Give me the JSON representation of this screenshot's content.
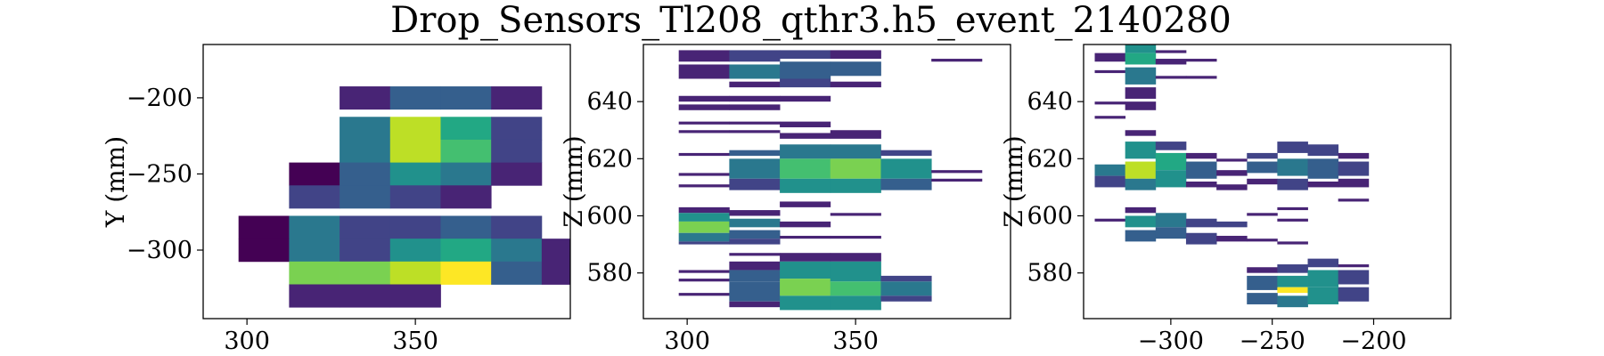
{
  "figure": {
    "title": "Drop_Sensors_Tl208_qthr3.h5_event_2140280"
  },
  "colormap": [
    "#440154",
    "#482475",
    "#414487",
    "#355f8d",
    "#2a788e",
    "#21918c",
    "#22a884",
    "#44bf70",
    "#7ad151",
    "#bddf26",
    "#fde725"
  ],
  "chart_data": [
    {
      "type": "heatmap",
      "name": "xy",
      "xlabel": "",
      "ylabel": "Y (mm)",
      "xlim": [
        287,
        396
      ],
      "ylim": [
        -345,
        -165
      ],
      "xticks": [
        300,
        350
      ],
      "yticks": [
        -200,
        -250,
        -300
      ],
      "cells": [
        [
          335,
          -200,
          0.08
        ],
        [
          350,
          -200,
          0.3
        ],
        [
          365,
          -200,
          0.3
        ],
        [
          380,
          -200,
          0.05
        ],
        [
          335,
          -220,
          0.35
        ],
        [
          350,
          -220,
          0.85
        ],
        [
          365,
          -220,
          0.6
        ],
        [
          380,
          -220,
          0.2
        ],
        [
          335,
          -235,
          0.35
        ],
        [
          350,
          -235,
          0.92
        ],
        [
          365,
          -235,
          0.72
        ],
        [
          380,
          -235,
          0.2
        ],
        [
          320,
          -250,
          0.02
        ],
        [
          335,
          -250,
          0.25
        ],
        [
          350,
          -250,
          0.45
        ],
        [
          365,
          -250,
          0.35
        ],
        [
          380,
          -250,
          0.05
        ],
        [
          320,
          -265,
          0.18
        ],
        [
          335,
          -265,
          0.25
        ],
        [
          350,
          -265,
          0.15
        ],
        [
          365,
          -265,
          0.05
        ],
        [
          305,
          -285,
          0.02
        ],
        [
          320,
          -285,
          0.38
        ],
        [
          335,
          -285,
          0.15
        ],
        [
          350,
          -285,
          0.15
        ],
        [
          365,
          -285,
          0.25
        ],
        [
          380,
          -285,
          0.15
        ],
        [
          305,
          -300,
          0.02
        ],
        [
          320,
          -300,
          0.38
        ],
        [
          335,
          -300,
          0.22
        ],
        [
          350,
          -300,
          0.45
        ],
        [
          365,
          -300,
          0.55
        ],
        [
          380,
          -300,
          0.35
        ],
        [
          395,
          -300,
          0.05
        ],
        [
          320,
          -315,
          0.78
        ],
        [
          335,
          -315,
          0.75
        ],
        [
          350,
          -315,
          0.85
        ],
        [
          365,
          -315,
          1.0
        ],
        [
          380,
          -315,
          0.3
        ],
        [
          395,
          -315,
          0.05
        ],
        [
          320,
          -330,
          0.05
        ],
        [
          335,
          -330,
          0.12
        ],
        [
          350,
          -330,
          0.08
        ]
      ],
      "cell_width": 15,
      "cell_height": 15
    },
    {
      "type": "heatmap",
      "name": "xz",
      "xlabel": "",
      "ylabel": "Z (mm)",
      "xlim": [
        287,
        396
      ],
      "ylim": [
        564,
        660
      ],
      "xticks": [
        300,
        350
      ],
      "yticks": [
        640,
        620,
        600,
        580
      ],
      "columns": [
        {
          "x": 305,
          "bands": [
            [
              654,
              658,
              0.05
            ],
            [
              648,
              653,
              0.05
            ],
            [
              640,
              642,
              0.05
            ],
            [
              637,
              639,
              0.05
            ],
            [
              632,
              633,
              0.05
            ],
            [
              629,
              630,
              0.05
            ],
            [
              621,
              622,
              0.05
            ],
            [
              614,
              615,
              0.05
            ],
            [
              610,
              611,
              0.05
            ],
            [
              601,
              603,
              0.1
            ],
            [
              598,
              601,
              0.45
            ],
            [
              594,
              598,
              0.75
            ],
            [
              591,
              594,
              0.4
            ],
            [
              590,
              591,
              0.15
            ],
            [
              580,
              581,
              0.05
            ],
            [
              577,
              578,
              0.05
            ],
            [
              572,
              573,
              0.05
            ]
          ]
        },
        {
          "x": 320,
          "bands": [
            [
              654,
              658,
              0.15
            ],
            [
              648,
              653,
              0.35
            ],
            [
              645,
              647,
              0.1
            ],
            [
              640,
              642,
              0.1
            ],
            [
              637,
              639,
              0.05
            ],
            [
              632,
              633,
              0.05
            ],
            [
              629,
              630,
              0.05
            ],
            [
              621,
              623,
              0.25
            ],
            [
              613,
              620,
              0.35
            ],
            [
              609,
              613,
              0.2
            ],
            [
              600,
              602,
              0.05
            ],
            [
              596,
              599,
              0.35
            ],
            [
              592,
              595,
              0.25
            ],
            [
              590,
              592,
              0.15
            ],
            [
              586,
              587,
              0.05
            ],
            [
              581,
              584,
              0.1
            ],
            [
              577,
              581,
              0.3
            ],
            [
              570,
              577,
              0.3
            ],
            [
              568,
              570,
              0.1
            ]
          ]
        },
        {
          "x": 335,
          "bands": [
            [
              655,
              658,
              0.15
            ],
            [
              648,
              654,
              0.3
            ],
            [
              645,
              648,
              0.15
            ],
            [
              640,
              642,
              0.05
            ],
            [
              631,
              633,
              0.05
            ],
            [
              627,
              629,
              0.1
            ],
            [
              620,
              625,
              0.4
            ],
            [
              613,
              620,
              0.7
            ],
            [
              608,
              613,
              0.45
            ],
            [
              603,
              605,
              0.05
            ],
            [
              596,
              598,
              0.05
            ],
            [
              592,
              593,
              0.05
            ],
            [
              584,
              587,
              0.1
            ],
            [
              578,
              584,
              0.45
            ],
            [
              572,
              578,
              0.75
            ],
            [
              567,
              572,
              0.5
            ]
          ]
        },
        {
          "x": 350,
          "bands": [
            [
              655,
              658,
              0.1
            ],
            [
              649,
              654,
              0.25
            ],
            [
              645,
              647,
              0.1
            ],
            [
              627,
              630,
              0.1
            ],
            [
              620,
              625,
              0.35
            ],
            [
              613,
              620,
              0.78
            ],
            [
              608,
              613,
              0.45
            ],
            [
              600,
              601,
              0.05
            ],
            [
              592,
              593,
              0.05
            ],
            [
              584,
              587,
              0.1
            ],
            [
              577,
              584,
              0.5
            ],
            [
              572,
              577,
              0.7
            ],
            [
              567,
              572,
              0.5
            ]
          ]
        },
        {
          "x": 365,
          "bands": [
            [
              621,
              623,
              0.2
            ],
            [
              613,
              620,
              0.45
            ],
            [
              609,
              613,
              0.3
            ],
            [
              577,
              579,
              0.2
            ],
            [
              572,
              577,
              0.4
            ],
            [
              570,
              572,
              0.2
            ]
          ]
        },
        {
          "x": 380,
          "bands": [
            [
              654,
              655,
              0.05
            ],
            [
              615,
              616,
              0.05
            ],
            [
              612,
              613,
              0.05
            ]
          ]
        }
      ],
      "cell_width": 15
    },
    {
      "type": "heatmap",
      "name": "yz",
      "xlabel": "",
      "ylabel": "Z (mm)",
      "xlim": [
        -343,
        -162
      ],
      "ylim": [
        564,
        660
      ],
      "xticks": [
        -300,
        -250,
        -200
      ],
      "yticks": [
        640,
        620,
        600,
        580
      ],
      "columns": [
        {
          "x": -330,
          "bands": [
            [
              654,
              657,
              0.1
            ],
            [
              650,
              651,
              0.05
            ],
            [
              639,
              640,
              0.05
            ],
            [
              634,
              635,
              0.05
            ],
            [
              614,
              618,
              0.35
            ],
            [
              610,
              614,
              0.15
            ],
            [
              598,
              599,
              0.05
            ]
          ]
        },
        {
          "x": -315,
          "bands": [
            [
              657,
              660,
              0.45
            ],
            [
              653,
              657,
              0.55
            ],
            [
              646,
              652,
              0.4
            ],
            [
              641,
              645,
              0.1
            ],
            [
              637,
              640,
              0.05
            ],
            [
              628,
              630,
              0.1
            ],
            [
              620,
              626,
              0.45
            ],
            [
              613,
              619,
              0.85
            ],
            [
              609,
              613,
              0.4
            ],
            [
              601,
              603,
              0.1
            ],
            [
              596,
              600,
              0.45
            ],
            [
              591,
              595,
              0.3
            ]
          ]
        },
        {
          "x": -300,
          "bands": [
            [
              657,
              658,
              0.05
            ],
            [
              653,
              655,
              0.05
            ],
            [
              648,
              649,
              0.05
            ],
            [
              623,
              626,
              0.15
            ],
            [
              616,
              622,
              0.55
            ],
            [
              610,
              616,
              0.45
            ],
            [
              596,
              601,
              0.35
            ],
            [
              592,
              596,
              0.25
            ]
          ]
        },
        {
          "x": -285,
          "bands": [
            [
              654,
              655,
              0.05
            ],
            [
              648,
              649,
              0.05
            ],
            [
              620,
              622,
              0.1
            ],
            [
              613,
              619,
              0.25
            ],
            [
              610,
              612,
              0.1
            ],
            [
              596,
              599,
              0.2
            ],
            [
              590,
              594,
              0.15
            ]
          ]
        },
        {
          "x": -270,
          "bands": [
            [
              619,
              620,
              0.05
            ],
            [
              614,
              616,
              0.1
            ],
            [
              609,
              611,
              0.05
            ],
            [
              596,
              598,
              0.15
            ],
            [
              591,
              593,
              0.1
            ]
          ]
        },
        {
          "x": -255,
          "bands": [
            [
              620,
              622,
              0.15
            ],
            [
              615,
              619,
              0.25
            ],
            [
              611,
              613,
              0.1
            ],
            [
              600,
              601,
              0.05
            ],
            [
              591,
              592,
              0.05
            ],
            [
              580,
              582,
              0.1
            ],
            [
              574,
              579,
              0.3
            ],
            [
              569,
              573,
              0.25
            ]
          ]
        },
        {
          "x": -240,
          "bands": [
            [
              622,
              626,
              0.15
            ],
            [
              614,
              620,
              0.35
            ],
            [
              609,
              613,
              0.2
            ],
            [
              602,
              603,
              0.05
            ],
            [
              598,
              599,
              0.05
            ],
            [
              590,
              591,
              0.05
            ],
            [
              580,
              583,
              0.2
            ],
            [
              575,
              579,
              0.5
            ],
            [
              573,
              575,
              1.0
            ],
            [
              568,
              572,
              0.4
            ]
          ]
        },
        {
          "x": -225,
          "bands": [
            [
              621,
              625,
              0.15
            ],
            [
              613,
              620,
              0.3
            ],
            [
              610,
              612,
              0.1
            ],
            [
              582,
              585,
              0.15
            ],
            [
              575,
              581,
              0.45
            ],
            [
              569,
              575,
              0.45
            ]
          ]
        },
        {
          "x": -210,
          "bands": [
            [
              620,
              622,
              0.05
            ],
            [
              614,
              619,
              0.2
            ],
            [
              610,
              613,
              0.1
            ],
            [
              605,
              606,
              0.05
            ],
            [
              582,
              583,
              0.05
            ],
            [
              576,
              581,
              0.15
            ],
            [
              570,
              575,
              0.15
            ]
          ]
        }
      ],
      "cell_width": 15
    }
  ]
}
